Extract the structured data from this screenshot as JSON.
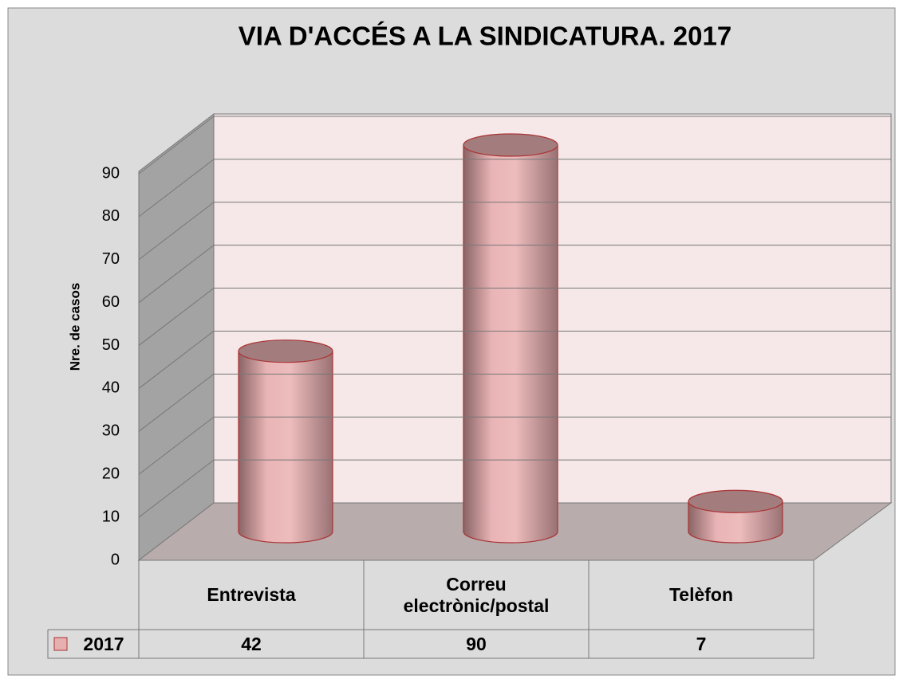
{
  "chart_data": {
    "type": "bar3d",
    "title": "VIA D'ACCÉS A LA SINDICATURA. 2017",
    "y_label": "Nre. de casos",
    "categories": [
      "Entrevista",
      "Correu electrònic/postal",
      "Telèfon"
    ],
    "series": [
      {
        "name": "2017",
        "color": "#e6b0b0",
        "values": [
          42,
          90,
          7
        ]
      }
    ],
    "ylim": [
      0,
      90
    ],
    "yticks": [
      0,
      10,
      20,
      30,
      40,
      50,
      60,
      70,
      80,
      90
    ],
    "grid": true
  }
}
